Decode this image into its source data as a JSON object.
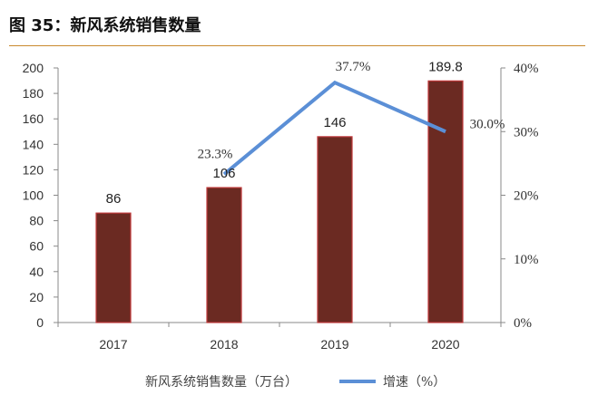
{
  "title": "图 35：新风系统销售数量",
  "chart_data": {
    "type": "bar",
    "categories": [
      "2017",
      "2018",
      "2019",
      "2020"
    ],
    "series": [
      {
        "name": "新风系统销售数量（万台）",
        "type": "bar",
        "axis": "left",
        "values": [
          86,
          106,
          146,
          189.8
        ],
        "labels": [
          "86",
          "106",
          "146",
          "189.8"
        ],
        "color": "#6b2a22"
      },
      {
        "name": "增速（%）",
        "type": "line",
        "axis": "right",
        "values": [
          null,
          23.3,
          37.7,
          30.0
        ],
        "labels": [
          "",
          "23.3%",
          "37.7%",
          "30.0%"
        ],
        "color": "#5b8fd6"
      }
    ],
    "y_left": {
      "ylim": [
        0,
        200
      ],
      "ticks": [
        "0",
        "20",
        "40",
        "60",
        "80",
        "100",
        "120",
        "140",
        "160",
        "180",
        "200"
      ]
    },
    "y_right": {
      "ylim": [
        0,
        40
      ],
      "ticks": [
        "0%",
        "10%",
        "20%",
        "30%",
        "40%"
      ]
    },
    "grid": false,
    "legend_position": "bottom"
  },
  "colors": {
    "bar": "#6b2a22",
    "bar_edge": "#c0393b",
    "line": "#5b8fd6",
    "title_rule": "#c98a2e"
  }
}
